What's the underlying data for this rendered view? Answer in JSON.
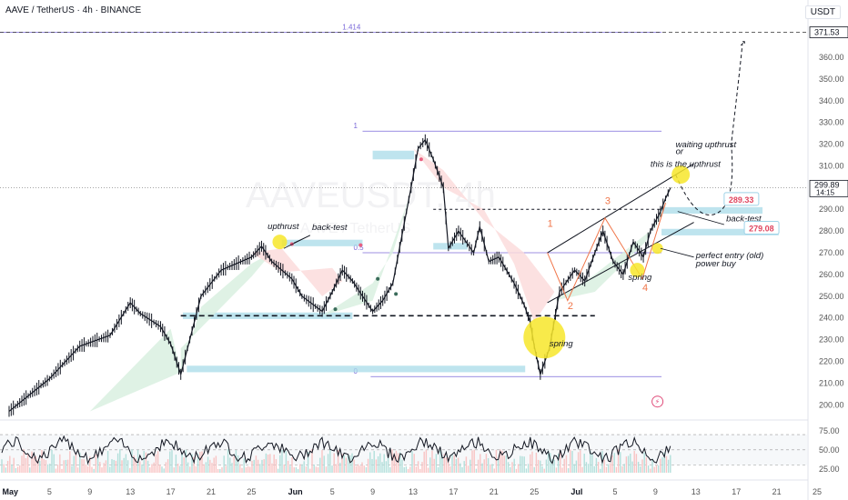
{
  "header": {
    "symbol_line": "AAVE / TetherUS · 4h · BINANCE",
    "currency": "USDT"
  },
  "watermark": {
    "main": "AAVEUSDT, 4h",
    "sub": "AAVE / TetherUS"
  },
  "chart_data": {
    "type": "line",
    "title": "AAVE / TetherUS · 4h · BINANCE",
    "xlabel": "",
    "ylabel": "USDT",
    "ylim": [
      193,
      378
    ],
    "y_ticks": [
      200,
      210,
      220,
      230,
      240,
      250,
      260,
      270,
      280,
      290,
      300,
      310,
      320,
      330,
      340,
      350,
      360
    ],
    "x_ticks": [
      "May",
      "5",
      "9",
      "13",
      "17",
      "21",
      "25",
      "Jun",
      "5",
      "9",
      "13",
      "17",
      "21",
      "25",
      "Jul",
      "5",
      "9",
      "13",
      "17",
      "21",
      "25"
    ],
    "price_path": [
      [
        0,
        197
      ],
      [
        4,
        212
      ],
      [
        7,
        227
      ],
      [
        10,
        232
      ],
      [
        12,
        247
      ],
      [
        13,
        242
      ],
      [
        15,
        236
      ],
      [
        16,
        228
      ],
      [
        17,
        214
      ],
      [
        19,
        250
      ],
      [
        21,
        262
      ],
      [
        24,
        268
      ],
      [
        25,
        273
      ],
      [
        26,
        266
      ],
      [
        28,
        258
      ],
      [
        29,
        250
      ],
      [
        31,
        243
      ],
      [
        32,
        252
      ],
      [
        33,
        262
      ],
      [
        34,
        257
      ],
      [
        35,
        250
      ],
      [
        36,
        243
      ],
      [
        37,
        248
      ],
      [
        38,
        256
      ],
      [
        39.8,
        300
      ],
      [
        40.5,
        318
      ],
      [
        41.2,
        322
      ],
      [
        42,
        313
      ],
      [
        43,
        300
      ],
      [
        43.5,
        272
      ],
      [
        44.5,
        280
      ],
      [
        46,
        270
      ],
      [
        46.6,
        282
      ],
      [
        47.5,
        266
      ],
      [
        48.5,
        268
      ],
      [
        49.5,
        260
      ],
      [
        50,
        256
      ],
      [
        51,
        246
      ],
      [
        51.6,
        238
      ],
      [
        52,
        227
      ],
      [
        52.6,
        214
      ],
      [
        53.5,
        226
      ],
      [
        54.5,
        252
      ],
      [
        56,
        262
      ],
      [
        57,
        257
      ],
      [
        58,
        270
      ],
      [
        58.8,
        280
      ],
      [
        59.8,
        266
      ],
      [
        60.8,
        260
      ],
      [
        61.8,
        275
      ],
      [
        62.8,
        268
      ],
      [
        63.5,
        280
      ],
      [
        64.5,
        289
      ],
      [
        65,
        295
      ],
      [
        65.5,
        300
      ]
    ],
    "price_label": "299.89",
    "countdown": "14:15",
    "target_label": "371.53",
    "fib_levels": [
      {
        "label": "1.414",
        "price": 371.5
      },
      {
        "label": "1",
        "price": 326
      },
      {
        "label": "0.5",
        "price": 270
      },
      {
        "label": "0",
        "price": 213
      }
    ],
    "price_tags": [
      {
        "label": "289.33",
        "price": 289.33
      },
      {
        "label": "279.08",
        "price": 279.08
      }
    ],
    "annotations": [
      {
        "text": "waiting upthrust",
        "x": 66,
        "y": 318.5
      },
      {
        "text": "or",
        "x": 66,
        "y": 315.5
      },
      {
        "text": "this is the upthrust",
        "x": 63.5,
        "y": 309.5
      },
      {
        "text": "upthrust",
        "x": 25.6,
        "y": 281
      },
      {
        "text": "back-test",
        "x": 30,
        "y": 280.5
      },
      {
        "text": "back-test",
        "x": 71,
        "y": 284.5
      },
      {
        "text": "perfect entry (old)",
        "x": 68,
        "y": 267.5
      },
      {
        "text": "power buy",
        "x": 68,
        "y": 263.8
      },
      {
        "text": "spring",
        "x": 61.3,
        "y": 257.5
      },
      {
        "text": "spring",
        "x": 53.5,
        "y": 227
      }
    ],
    "wave_labels": [
      {
        "text": "1",
        "x": 53.3,
        "y": 282
      },
      {
        "text": "2",
        "x": 55.3,
        "y": 244
      },
      {
        "text": "3",
        "x": 59,
        "y": 292.5
      },
      {
        "text": "4",
        "x": 62.7,
        "y": 252.5
      }
    ],
    "rsi": {
      "ylim": [
        20,
        82
      ],
      "ticks": [
        25,
        50,
        75
      ],
      "band": [
        30,
        70
      ]
    }
  },
  "colors": {
    "up": "#26a69a",
    "down": "#ef5350",
    "zone": "#a8dbe8",
    "fib": "#7b6ad9",
    "highlight": "#f7e62a",
    "cloud_up": "#d9f0e1",
    "cloud_down": "#fbdcdc",
    "annotation": "#131722",
    "orange_label": "#f0764a"
  }
}
